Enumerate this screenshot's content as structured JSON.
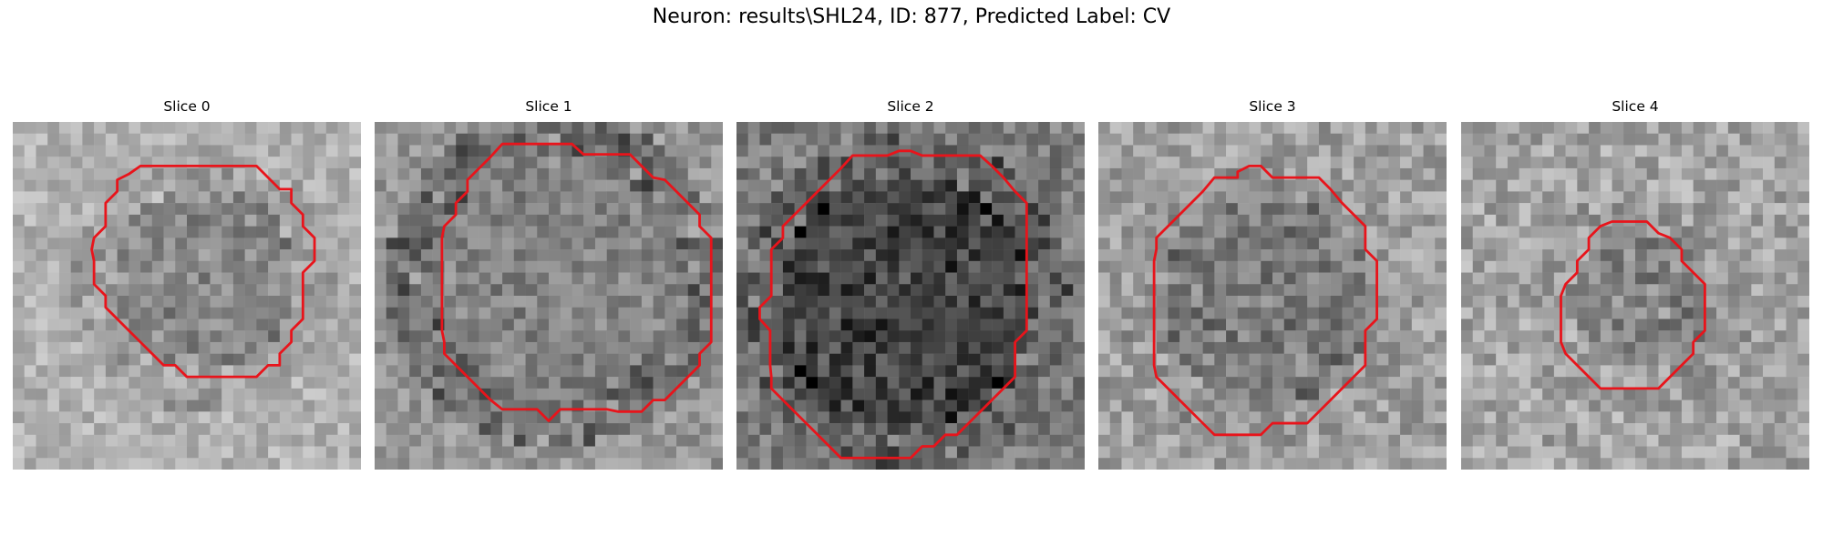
{
  "figure": {
    "title": "Neuron: results\\SHL24, ID: 877, Predicted Label: CV"
  },
  "panels": [
    {
      "label": "Slice 0"
    },
    {
      "label": "Slice 1"
    },
    {
      "label": "Slice 2"
    },
    {
      "label": "Slice 3"
    },
    {
      "label": "Slice 4"
    }
  ],
  "colors": {
    "contour": "#e8141b",
    "background": "#ffffff"
  }
}
